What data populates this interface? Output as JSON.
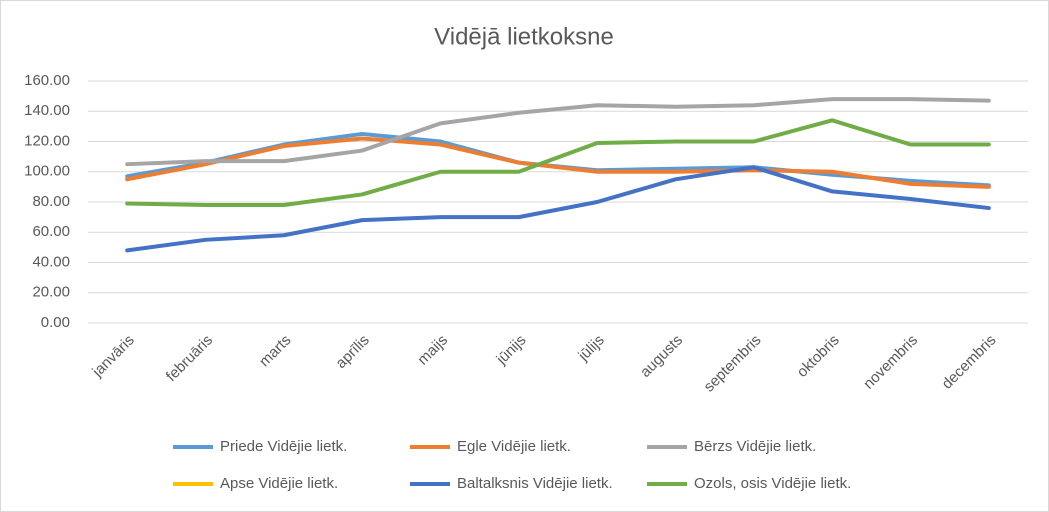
{
  "chart_data": {
    "type": "line",
    "title": "Vidējā lietkoksne",
    "categories": [
      "janvāris",
      "februāris",
      "marts",
      "aprīlis",
      "maijs",
      "jūnijs",
      "jūlijs",
      "augusts",
      "septembris",
      "oktobris",
      "novembris",
      "decembris"
    ],
    "series": [
      {
        "name": "Priede Vidējie lietk.",
        "color": "#5b9bd5",
        "values": [
          97,
          106,
          118,
          125,
          120,
          106,
          101,
          102,
          103,
          98,
          94,
          91
        ]
      },
      {
        "name": "Egle Vidējie lietk.",
        "color": "#ed7d31",
        "values": [
          95,
          105,
          117,
          122,
          118,
          106,
          100,
          100,
          101,
          100,
          92,
          90
        ]
      },
      {
        "name": "Bērzs Vidējie lietk.",
        "color": "#a5a5a5",
        "values": [
          105,
          107,
          107,
          114,
          132,
          139,
          144,
          143,
          144,
          148,
          148,
          147
        ]
      },
      {
        "name": "Apse Vidējie lietk.",
        "color": "#ffc000",
        "values": [
          null,
          null,
          null,
          null,
          null,
          null,
          null,
          null,
          null,
          null,
          null,
          null
        ]
      },
      {
        "name": "Baltalksnis Vidējie lietk.",
        "color": "#4472c4",
        "values": [
          48,
          55,
          58,
          68,
          70,
          70,
          80,
          95,
          103,
          87,
          82,
          76
        ]
      },
      {
        "name": "Ozols, osis Vidējie lietk.",
        "color": "#70ad47",
        "values": [
          79,
          78,
          78,
          85,
          100,
          100,
          119,
          120,
          120,
          134,
          118,
          118
        ]
      }
    ],
    "ylim": [
      0,
      160
    ],
    "yticks": [
      {
        "value": 0,
        "label": "0.00"
      },
      {
        "value": 20,
        "label": "20.00"
      },
      {
        "value": 40,
        "label": "40.00"
      },
      {
        "value": 60,
        "label": "60.00"
      },
      {
        "value": 80,
        "label": "80.00"
      },
      {
        "value": 100,
        "label": "100.00"
      },
      {
        "value": 120,
        "label": "120.00"
      },
      {
        "value": 140,
        "label": "140.00"
      },
      {
        "value": 160,
        "label": "160.00"
      }
    ],
    "grid": true,
    "legend": "bottom"
  }
}
